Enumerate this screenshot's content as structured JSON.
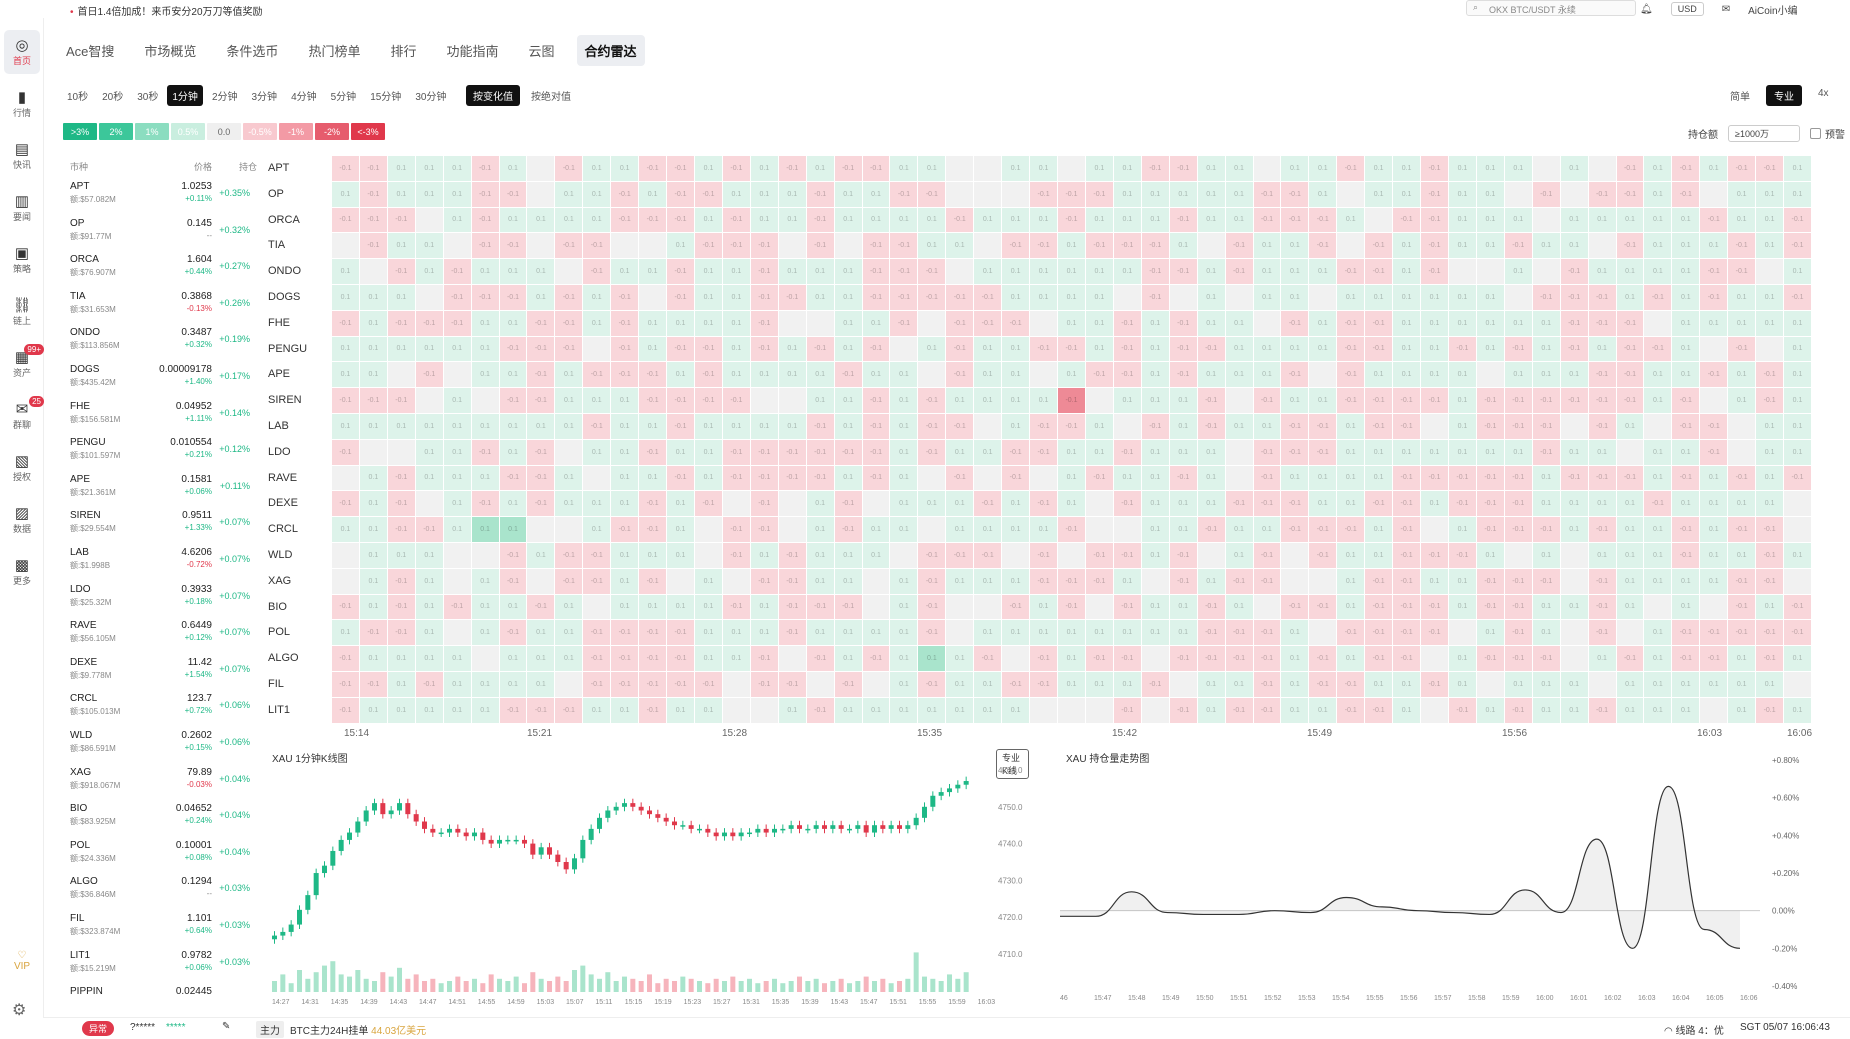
{
  "topbar": {
    "notice": "首日1.4倍加成！来币安分20万刀等值奖励",
    "search_placeholder": "OKX BTC/USDT 永续",
    "currency": "USD",
    "user": "AiCoin小编"
  },
  "sidebar": [
    {
      "label": "首页",
      "icon": "home-icon",
      "glyph": "◎",
      "active": true
    },
    {
      "label": "行情",
      "icon": "bar-chart-icon",
      "glyph": "▮"
    },
    {
      "label": "快讯",
      "icon": "flash-icon",
      "glyph": "▤"
    },
    {
      "label": "要闻",
      "icon": "news-icon",
      "glyph": "▥"
    },
    {
      "label": "策略",
      "icon": "robot-icon",
      "glyph": "▣"
    },
    {
      "label": "链上",
      "icon": "chain-icon",
      "glyph": "⛓"
    },
    {
      "label": "资产",
      "icon": "wallet-icon",
      "glyph": "▦",
      "badge": "99+"
    },
    {
      "label": "群聊",
      "icon": "chat-icon",
      "glyph": "✉",
      "badge": "25"
    },
    {
      "label": "授权",
      "icon": "key-icon",
      "glyph": "▧"
    },
    {
      "label": "数据",
      "icon": "data-icon",
      "glyph": "▨"
    },
    {
      "label": "更多",
      "icon": "more-icon",
      "glyph": "▩"
    }
  ],
  "vip": "VIP",
  "nav": [
    "Ace智搜",
    "市场概览",
    "条件选币",
    "热门榜单",
    "排行",
    "功能指南",
    "云图",
    "合约雷达"
  ],
  "nav_active": 7,
  "intervals": [
    "10秒",
    "20秒",
    "30秒",
    "1分钟",
    "2分钟",
    "3分钟",
    "4分钟",
    "5分钟",
    "15分钟",
    "30分钟"
  ],
  "interval_active": 3,
  "modes": [
    "按变化值",
    "按绝对值"
  ],
  "mode_active": 0,
  "view_modes": [
    "简单",
    "专业",
    "4x"
  ],
  "view_active": 1,
  "legend": [
    {
      "t": ">3%",
      "c": "#1eb886"
    },
    {
      "t": "2%",
      "c": "#3cc79a"
    },
    {
      "t": "1%",
      "c": "#8bddc0"
    },
    {
      "t": "0.5%",
      "c": "#c9eedf"
    },
    {
      "t": "0.0",
      "c": "#efefef"
    },
    {
      "t": "-0.5%",
      "c": "#f8c9cf"
    },
    {
      "t": "-1%",
      "c": "#f39aa5"
    },
    {
      "t": "-2%",
      "c": "#e65c6d"
    },
    {
      "t": "<-3%",
      "c": "#e0384b"
    }
  ],
  "hold_label": "持仓额",
  "hold_value": "≥1000万",
  "warn_label": "预警",
  "list_head": {
    "market": "市种",
    "price": "价格",
    "oi": "持仓"
  },
  "coins": [
    {
      "sym": "APT",
      "vol": "额:$57.082M",
      "price": "1.0253",
      "chg": "+0.11%",
      "oi": "+0.35%"
    },
    {
      "sym": "OP",
      "vol": "额:$91.77M",
      "price": "0.145",
      "chg": "--",
      "oi": "+0.32%"
    },
    {
      "sym": "ORCA",
      "vol": "额:$76.907M",
      "price": "1.604",
      "chg": "+0.44%",
      "oi": "+0.27%"
    },
    {
      "sym": "TIA",
      "vol": "额:$31.653M",
      "price": "0.3868",
      "chg": "-0.13%",
      "oi": "+0.26%"
    },
    {
      "sym": "ONDO",
      "vol": "额:$113.856M",
      "price": "0.3487",
      "chg": "+0.32%",
      "oi": "+0.19%"
    },
    {
      "sym": "DOGS",
      "vol": "额:$435.42M",
      "price": "0.00009178",
      "chg": "+1.40%",
      "oi": "+0.17%"
    },
    {
      "sym": "FHE",
      "vol": "额:$156.581M",
      "price": "0.04952",
      "chg": "+1.11%",
      "oi": "+0.14%"
    },
    {
      "sym": "PENGU",
      "vol": "额:$101.597M",
      "price": "0.010554",
      "chg": "+0.21%",
      "oi": "+0.12%"
    },
    {
      "sym": "APE",
      "vol": "额:$21.361M",
      "price": "0.1581",
      "chg": "+0.06%",
      "oi": "+0.11%"
    },
    {
      "sym": "SIREN",
      "vol": "额:$29.554M",
      "price": "0.9511",
      "chg": "+1.33%",
      "oi": "+0.07%"
    },
    {
      "sym": "LAB",
      "vol": "额:$1.998B",
      "price": "4.6206",
      "chg": "-0.72%",
      "oi": "+0.07%"
    },
    {
      "sym": "LDO",
      "vol": "额:$25.32M",
      "price": "0.3933",
      "chg": "+0.18%",
      "oi": "+0.07%"
    },
    {
      "sym": "RAVE",
      "vol": "额:$56.105M",
      "price": "0.6449",
      "chg": "+0.12%",
      "oi": "+0.07%"
    },
    {
      "sym": "DEXE",
      "vol": "额:$9.778M",
      "price": "11.42",
      "chg": "+1.54%",
      "oi": "+0.07%"
    },
    {
      "sym": "CRCL",
      "vol": "额:$105.013M",
      "price": "123.7",
      "chg": "+0.72%",
      "oi": "+0.06%"
    },
    {
      "sym": "WLD",
      "vol": "额:$86.591M",
      "price": "0.2602",
      "chg": "+0.15%",
      "oi": "+0.06%"
    },
    {
      "sym": "XAG",
      "vol": "额:$918.067M",
      "price": "79.89",
      "chg": "-0.03%",
      "oi": "+0.04%"
    },
    {
      "sym": "BIO",
      "vol": "额:$83.925M",
      "price": "0.04652",
      "chg": "+0.24%",
      "oi": "+0.04%"
    },
    {
      "sym": "POL",
      "vol": "额:$24.336M",
      "price": "0.10001",
      "chg": "+0.08%",
      "oi": "+0.04%"
    },
    {
      "sym": "ALGO",
      "vol": "额:$36.846M",
      "price": "0.1294",
      "chg": "--",
      "oi": "+0.03%"
    },
    {
      "sym": "FIL",
      "vol": "额:$323.874M",
      "price": "1.101",
      "chg": "+0.64%",
      "oi": "+0.03%"
    },
    {
      "sym": "LIT1",
      "vol": "额:$15.219M",
      "price": "0.9782",
      "chg": "+0.06%",
      "oi": "+0.03%"
    },
    {
      "sym": "PIPPIN",
      "vol": "",
      "price": "0.02445",
      "chg": "",
      "oi": ""
    }
  ],
  "heat_rows": [
    "APT",
    "OP",
    "ORCA",
    "TIA",
    "ONDO",
    "DOGS",
    "FHE",
    "PENGU",
    "APE",
    "SIREN",
    "LAB",
    "LDO",
    "RAVE",
    "DEXE",
    "CRCL",
    "WLD",
    "XAG",
    "BIO",
    "POL",
    "ALGO",
    "FIL",
    "LIT1"
  ],
  "heat_times": [
    "15:14",
    "15:21",
    "15:28",
    "15:35",
    "15:42",
    "15:49",
    "15:56",
    "16:03",
    "16:06"
  ],
  "kline": {
    "title": "XAU 1分钟K线图",
    "pro_btn": "专业K线",
    "y_ticks": [
      "4760.0",
      "4750.0",
      "4740.0",
      "4730.0",
      "4720.0",
      "4710.0"
    ],
    "x_ticks": [
      "14:27",
      "14:31",
      "14:35",
      "14:39",
      "14:43",
      "14:47",
      "14:51",
      "14:55",
      "14:59",
      "15:03",
      "15:07",
      "15:11",
      "15:15",
      "15:19",
      "15:23",
      "15:27",
      "15:31",
      "15:35",
      "15:39",
      "15:43",
      "15:47",
      "15:51",
      "15:55",
      "15:59",
      "16:03"
    ],
    "closes": [
      4715,
      4716,
      4718,
      4722,
      4726,
      4732,
      4734,
      4738,
      4741,
      4743,
      4746,
      4749,
      4751,
      4748,
      4749,
      4751,
      4748,
      4746,
      4744,
      4743,
      4743,
      4744,
      4743,
      4742,
      4743,
      4741,
      4740,
      4741,
      4741,
      4741,
      4740,
      4737,
      4739,
      4737,
      4735,
      4733,
      4736,
      4741,
      4744,
      4747,
      4749,
      4750,
      4751,
      4750,
      4749,
      4748,
      4747,
      4746,
      4745,
      4745,
      4744,
      4744,
      4743,
      4742,
      4743,
      4742,
      4743,
      4743,
      4744,
      4743,
      4744,
      4744,
      4745,
      4744,
      4744,
      4745,
      4744,
      4745,
      4744,
      4744,
      4745,
      4743,
      4745,
      4744,
      4745,
      4744,
      4745,
      4747,
      4750,
      4753,
      4754,
      4755,
      4756,
      4757
    ],
    "vol": [
      5,
      8,
      4,
      10,
      6,
      9,
      12,
      14,
      8,
      7,
      10,
      6,
      5,
      9,
      7,
      11,
      6,
      8,
      5,
      6,
      4,
      5,
      7,
      5,
      6,
      4,
      8,
      6,
      5,
      7,
      4,
      9,
      6,
      5,
      7,
      5,
      10,
      12,
      8,
      6,
      9,
      5,
      7,
      6,
      5,
      8,
      4,
      6,
      5,
      7,
      6,
      5,
      4,
      6,
      5,
      7,
      5,
      6,
      4,
      5,
      6,
      4,
      5,
      7,
      5,
      6,
      4,
      5,
      6,
      4,
      5,
      7,
      5,
      6,
      4,
      5,
      6,
      18,
      7,
      6,
      5,
      8,
      6,
      9
    ]
  },
  "oi_chart": {
    "title": "XAU 持仓量走势图",
    "y_ticks": [
      "+0.80%",
      "+0.60%",
      "+0.40%",
      "+0.20%",
      "0.00%",
      "-0.20%",
      "-0.40%"
    ],
    "x_ticks": [
      "46",
      "15:47",
      "15:48",
      "15:49",
      "15:50",
      "15:51",
      "15:52",
      "15:53",
      "15:54",
      "15:55",
      "15:56",
      "15:57",
      "15:58",
      "15:59",
      "16:00",
      "16:01",
      "16:02",
      "16:03",
      "16:04",
      "16:05",
      "16:06"
    ],
    "values": [
      -0.03,
      -0.03,
      0.1,
      -0.01,
      -0.02,
      -0.02,
      0.0,
      -0.01,
      0.07,
      0.02,
      0.0,
      -0.01,
      -0.02,
      0.11,
      -0.01,
      0.38,
      -0.2,
      0.66,
      -0.1,
      -0.2
    ]
  },
  "bottom": {
    "flag": "异常",
    "mask": "?*****",
    "mask_tail": "*****",
    "main": "主力",
    "ticker": "BTC主力24H挂单",
    "amount": "44.03亿美元",
    "line": "线路 4：优",
    "time": "SGT 05/07 16:06:43"
  }
}
